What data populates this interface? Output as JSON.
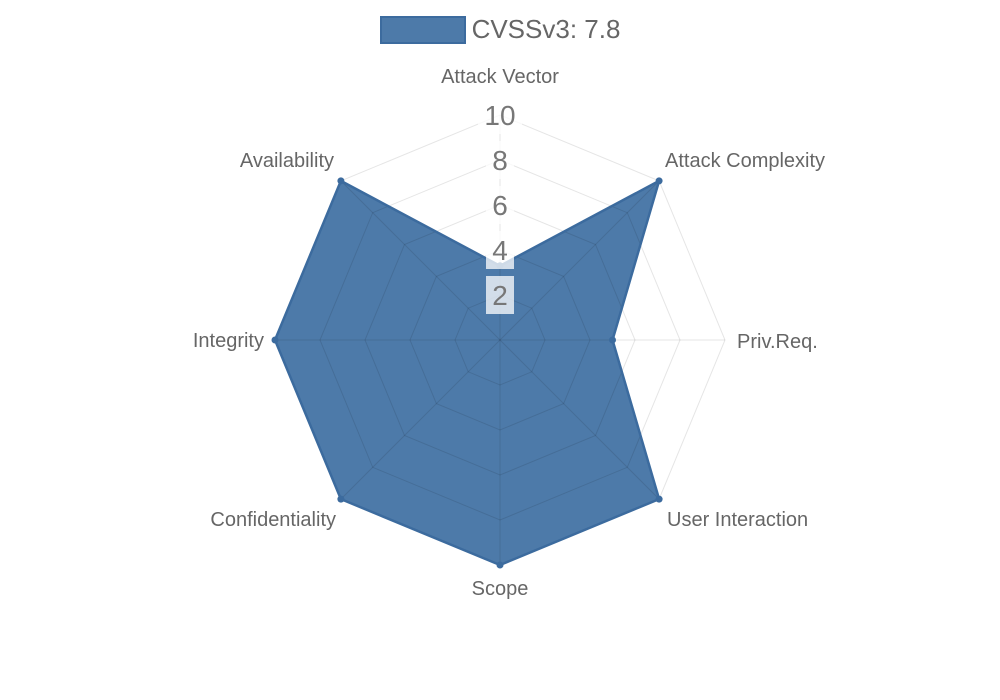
{
  "legend": {
    "label": "CVSSv3: 7.8"
  },
  "colors": {
    "fill": "#4d7aa9",
    "border": "#3c6b9e",
    "grid": "rgba(0,0,0,0.1)",
    "label_text": "#666666",
    "tick_text": "#777777",
    "tick_backdrop": "rgba(255,255,255,0.75)"
  },
  "chart_data": {
    "type": "radar",
    "title": "CVSSv3: 7.8",
    "cvss_score": "7.8",
    "categories": [
      "Attack Vector",
      "Attack Complexity",
      "Priv.Req.",
      "User Interaction",
      "Scope",
      "Confidentiality",
      "Integrity",
      "Availability"
    ],
    "series": [
      {
        "name": "CVSSv3: 7.8",
        "values": [
          3.3,
          10,
          5,
          10,
          10,
          10,
          10,
          10
        ]
      }
    ],
    "ticks": [
      2,
      4,
      6,
      8,
      10
    ],
    "rlim": [
      0,
      10
    ],
    "grid": true,
    "grid_shape": "polygon",
    "legend_position": "top"
  }
}
